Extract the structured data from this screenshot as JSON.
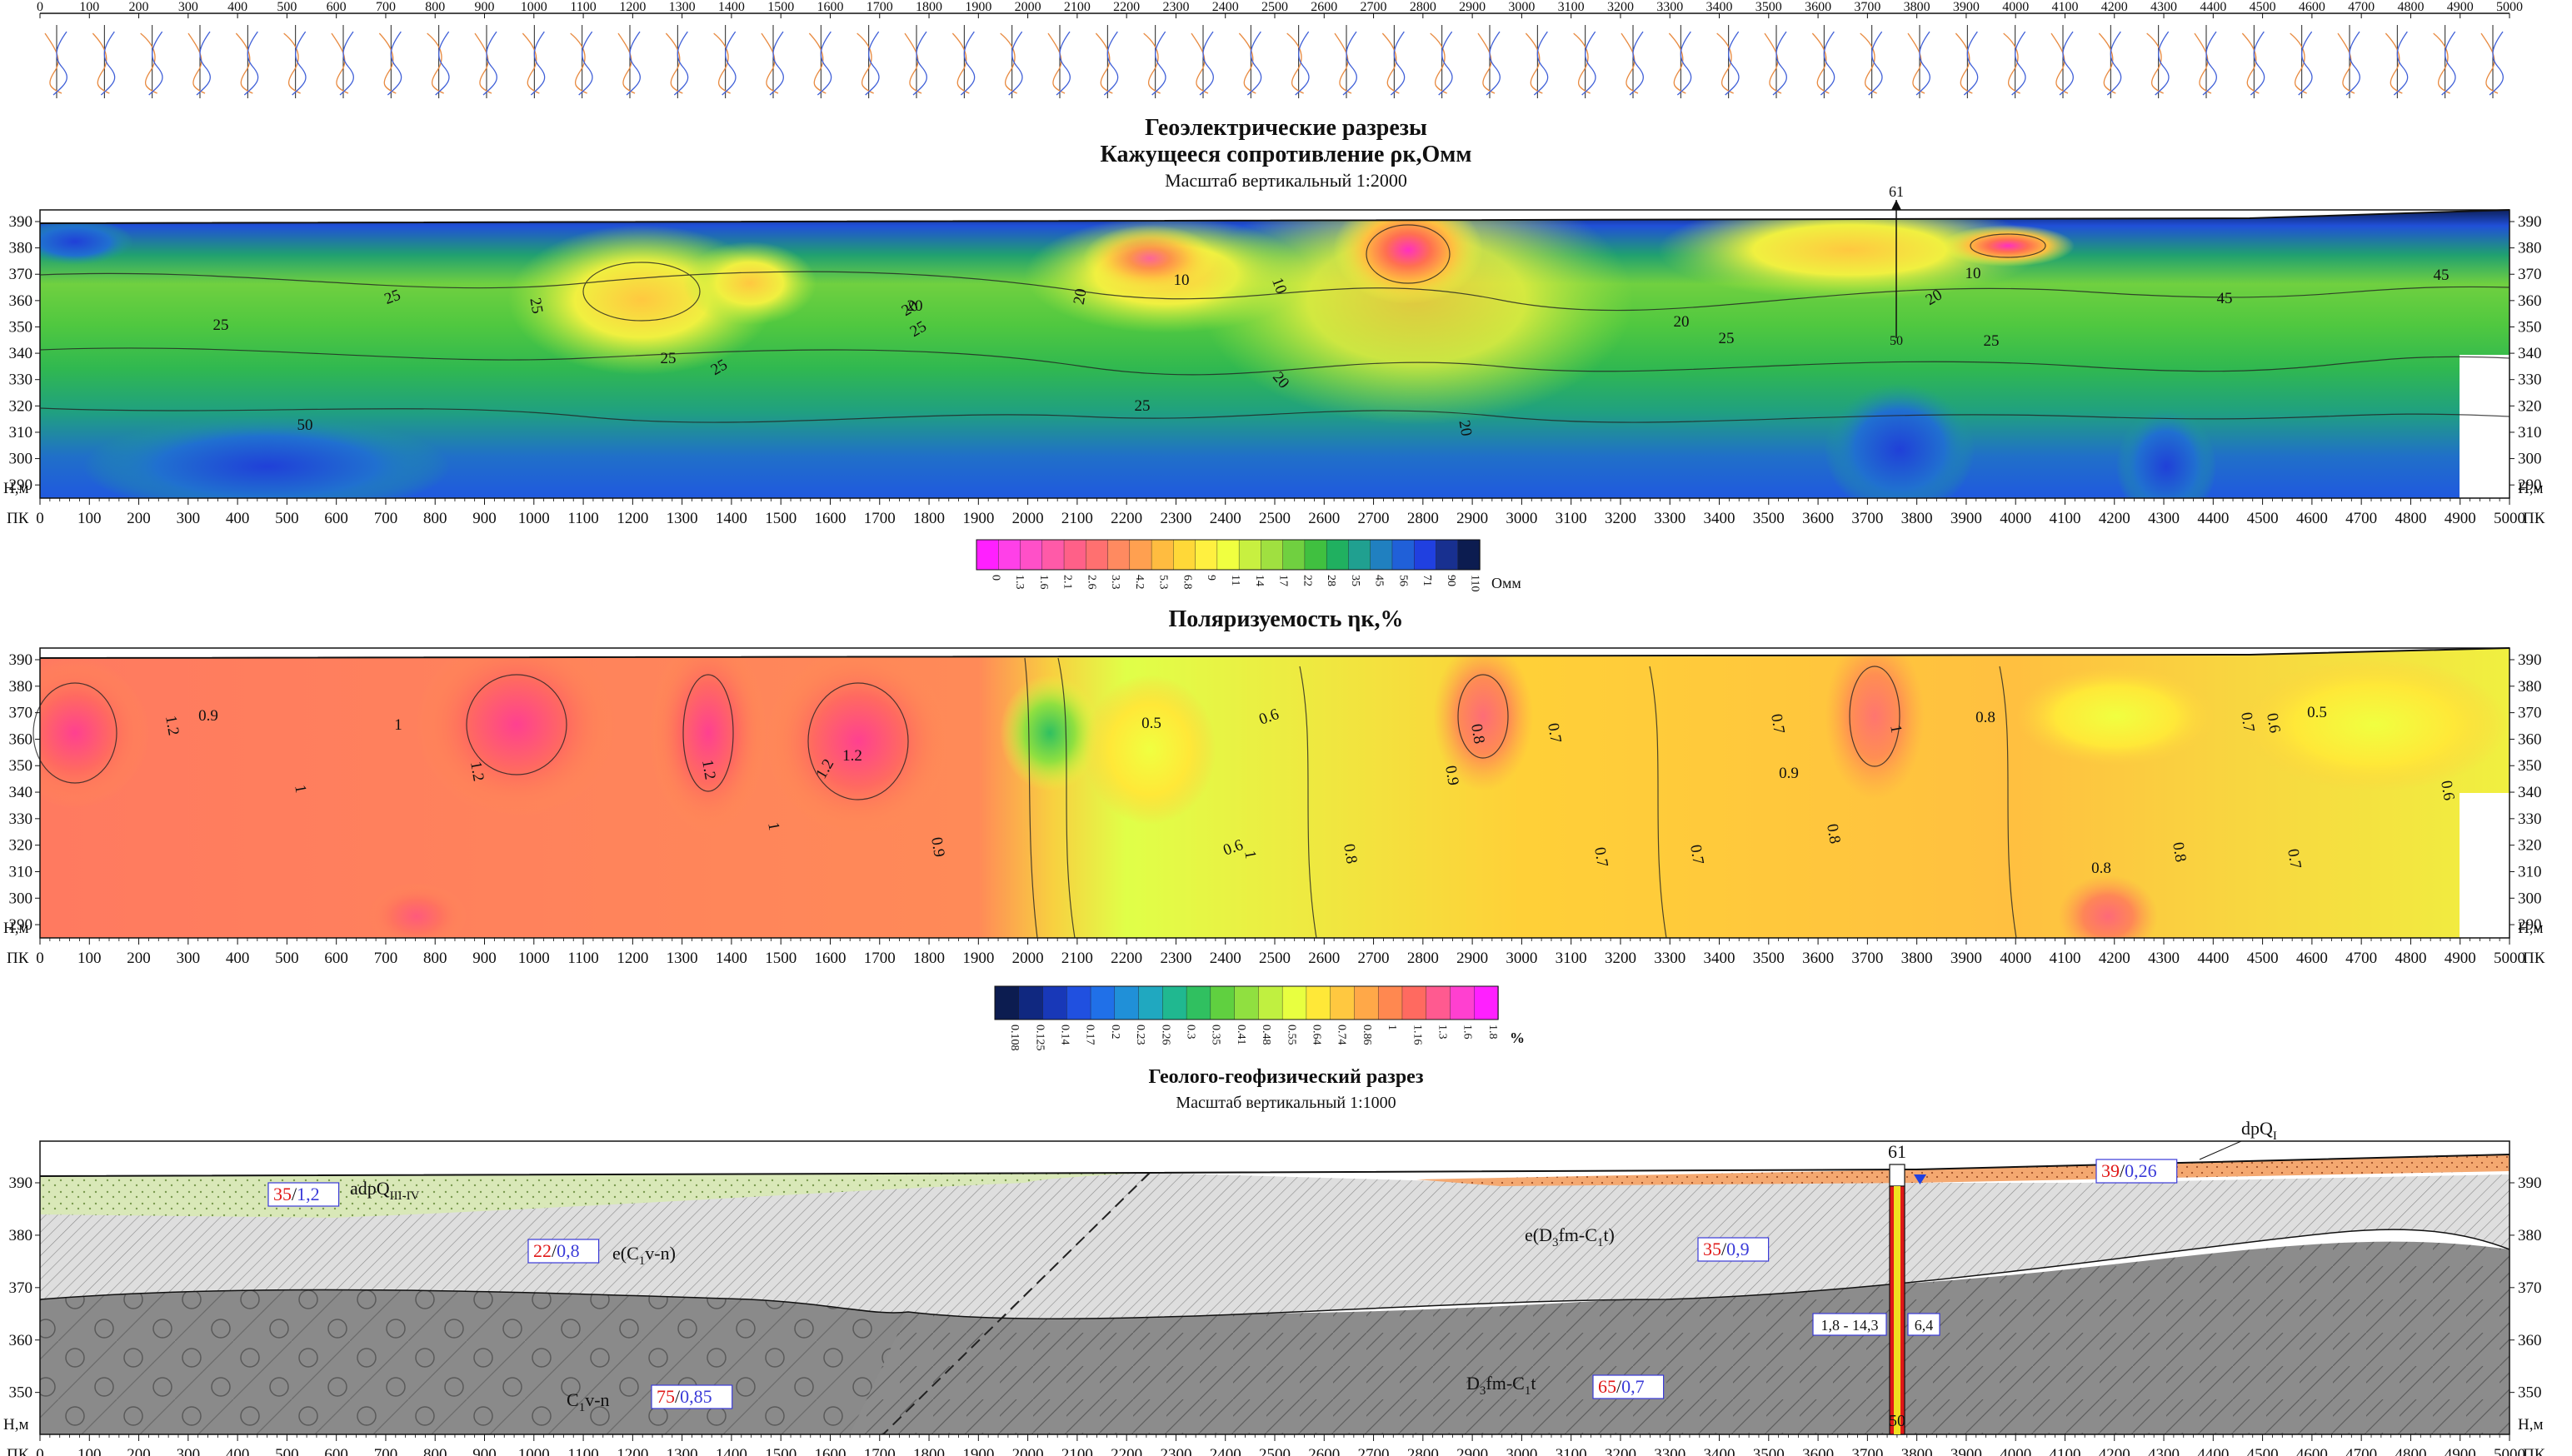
{
  "titles": {
    "main": "Геоэлектрические разрезы",
    "resistivity": "Кажущееся сопротивление  ρк,Омм",
    "resistivity_scale": "Масштаб вертикальный 1:2000",
    "polarization": "Поляризуемость  ηк,%",
    "geology": "Геолого-геофизический разрез",
    "geology_scale": "Масштаб вертикальный 1:1000"
  },
  "axis": {
    "pk_label": "ПК",
    "h_label": "Н,м",
    "pk_ticks": [
      "0",
      "100",
      "200",
      "300",
      "400",
      "500",
      "600",
      "700",
      "800",
      "900",
      "1000",
      "1100",
      "1200",
      "1300",
      "1400",
      "1500",
      "1600",
      "1700",
      "1800",
      "1900",
      "2000",
      "2100",
      "2200",
      "2300",
      "2400",
      "2500",
      "2600",
      "2700",
      "2800",
      "2900",
      "3000",
      "3100",
      "3200",
      "3300",
      "3400",
      "3500",
      "3600",
      "3700",
      "3800",
      "3900",
      "4000",
      "4100",
      "4200",
      "4300",
      "4400",
      "4500",
      "4600",
      "4700",
      "4800",
      "4900",
      "5000"
    ],
    "h_ticks": [
      "390",
      "380",
      "370",
      "360",
      "350",
      "340",
      "330",
      "320",
      "310",
      "300",
      "290"
    ],
    "h_ticks_geo": [
      "390",
      "380",
      "370",
      "360",
      "350"
    ]
  },
  "resistivity_legend": {
    "unit": "Омм",
    "values": [
      "0",
      "1.3",
      "1.6",
      "2.1",
      "2.6",
      "3.3",
      "4.2",
      "5.3",
      "6.8",
      "9",
      "11",
      "14",
      "17",
      "22",
      "28",
      "35",
      "45",
      "56",
      "71",
      "90",
      "110"
    ],
    "colors": [
      "#ff20ff",
      "#ff40e8",
      "#ff50c8",
      "#ff5aa8",
      "#ff6088",
      "#ff7070",
      "#ff8a60",
      "#ffa050",
      "#ffbc40",
      "#ffd838",
      "#fff040",
      "#f0ff40",
      "#c8f040",
      "#a0e040",
      "#70d040",
      "#40c040",
      "#20b060",
      "#20a090",
      "#2080c0",
      "#2060d8",
      "#2040e0",
      "#183090",
      "#0c1c50"
    ]
  },
  "polarization_legend": {
    "unit": "%",
    "values": [
      "0.108",
      "0.125",
      "0.14",
      "0.17",
      "0.2",
      "0.23",
      "0.26",
      "0.3",
      "0.35",
      "0.41",
      "0.48",
      "0.55",
      "0.64",
      "0.74",
      "0.86",
      "1",
      "1.16",
      "1.3",
      "1.6",
      "1.8"
    ],
    "colors": [
      "#0c1c50",
      "#102880",
      "#1838b8",
      "#2050e0",
      "#2070e8",
      "#2090d8",
      "#20a8c0",
      "#20b890",
      "#30c060",
      "#60d040",
      "#90e040",
      "#c0f040",
      "#e8ff40",
      "#ffe838",
      "#ffc840",
      "#ffa848",
      "#ff8850",
      "#ff6a60",
      "#ff5a90",
      "#ff40d0",
      "#ff20ff"
    ]
  },
  "resistivity_contours": [
    "10",
    "10",
    "10",
    "20",
    "20",
    "20",
    "20",
    "20",
    "20",
    "20",
    "25",
    "25",
    "25",
    "25",
    "25",
    "25",
    "25",
    "25",
    "25",
    "45",
    "45",
    "50"
  ],
  "polarization_contours": [
    "1.2",
    "1.2",
    "1.2",
    "1.2",
    "1.2",
    "0.9",
    "0.9",
    "0.9",
    "0.9",
    "1",
    "1",
    "1",
    "1",
    "1",
    "0.8",
    "0.8",
    "0.8",
    "0.8",
    "0.8",
    "0.8",
    "0.7",
    "0.7",
    "0.7",
    "0.7",
    "0.7",
    "0.7",
    "0.6",
    "0.6",
    "0.6",
    "0.6",
    "0.5",
    "0.5"
  ],
  "well": {
    "number": "61",
    "bottom": "50",
    "interval": "1,8 - 14,3",
    "water_level": "6,4"
  },
  "geology": {
    "layers": [
      {
        "index": "adpQ",
        "sub": "III-IV",
        "rho": "35",
        "eta": "1,2"
      },
      {
        "index": "e(C",
        "sub": "1",
        "tail": "v-n)",
        "rho": "22",
        "eta": "0,8"
      },
      {
        "index": "C",
        "sub": "1",
        "tail": "v-n",
        "rho": "75",
        "eta": "0,85"
      },
      {
        "index": "e(D",
        "sub": "3",
        "tail": "fm-C",
        "sub2": "1",
        "tail2": "t)",
        "rho": "35",
        "eta": "0,9"
      },
      {
        "index": "D",
        "sub": "3",
        "tail": "fm-C",
        "sub2": "1",
        "tail2": "t",
        "rho": "65",
        "eta": "0,7"
      },
      {
        "index": "dpQ",
        "sub": "I",
        "rho": "39",
        "eta": "0,26"
      }
    ]
  },
  "colors": {
    "rho_red": "#e01818",
    "eta_blue": "#3a3ad8",
    "adp_fill": "#d9e8b8",
    "dp_fill": "#f4a870",
    "eluvium_fill": "#dcdcdc",
    "bedrock_fill": "#8a8a8a"
  }
}
